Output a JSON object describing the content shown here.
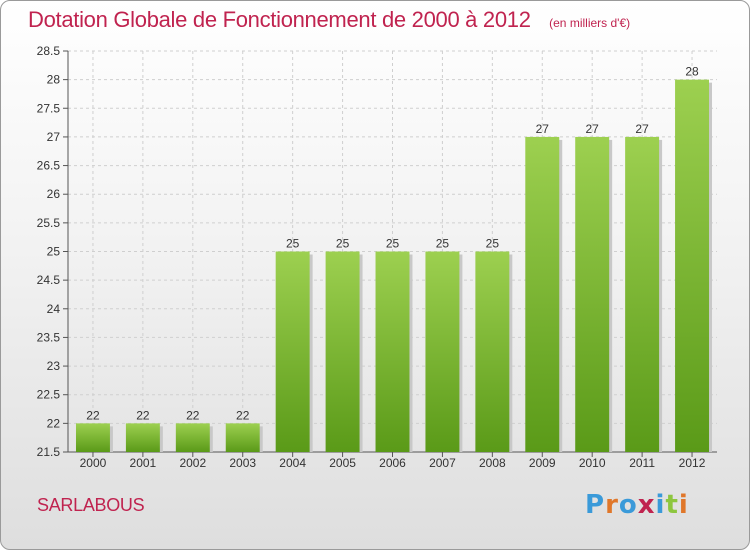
{
  "header": {
    "title": "Dotation Globale de Fonctionnement de 2000 à 2012",
    "subtitle": "(en milliers d'€)"
  },
  "footer": {
    "commune": "SARLABOUS",
    "logo_text": "Proxiti"
  },
  "colors": {
    "title": "#c0234f",
    "bar_top": "#9dd050",
    "bar_bottom": "#5a9a18",
    "grid": "#cfcfcf"
  },
  "chart_data": {
    "type": "bar",
    "title": "Dotation Globale de Fonctionnement de 2000 à 2012",
    "subtitle": "(en milliers d'€)",
    "categories": [
      "2000",
      "2001",
      "2002",
      "2003",
      "2004",
      "2005",
      "2006",
      "2007",
      "2008",
      "2009",
      "2010",
      "2011",
      "2012"
    ],
    "values": [
      22,
      22,
      22,
      22,
      25,
      25,
      25,
      25,
      25,
      27,
      27,
      27,
      28
    ],
    "ylim": [
      21.5,
      28.5
    ],
    "yticks": [
      21.5,
      22,
      22.5,
      23,
      23.5,
      24,
      24.5,
      25,
      25.5,
      26,
      26.5,
      27,
      27.5,
      28,
      28.5
    ],
    "grid": true,
    "legend": "none"
  }
}
